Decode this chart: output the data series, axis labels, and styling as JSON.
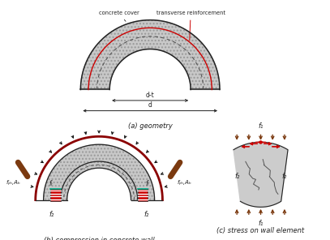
{
  "bg_color": "#ffffff",
  "concrete_color": "#c8c8c8",
  "concrete_light": "#cccccc",
  "dark_line": "#222222",
  "brown_color": "#7B3A10",
  "red_color": "#cc0000",
  "arrow_color": "#111111",
  "title_a": "(a) geometry",
  "title_b": "(b) compression in concrete wall",
  "title_c": "(c) stress on wall element",
  "label_concrete_cover": "concrete cover",
  "label_transverse": "transverse reinforcement",
  "label_d": "d",
  "label_dt": "d-t",
  "label_fr_left": "fᵣ",
  "label_fr_right": "fᵣ",
  "label_fyh_left": "fᵧₕ,Aₕ",
  "label_fyh_right": "fᵧₕ,Aₕ",
  "label_f2_bottom_left": "f₂",
  "label_f2_bottom_right": "f₂",
  "label_f1_top": "f₁",
  "label_f2_left": "f₂",
  "label_f2_right": "f₂",
  "label_f1_bottom": "f₁"
}
